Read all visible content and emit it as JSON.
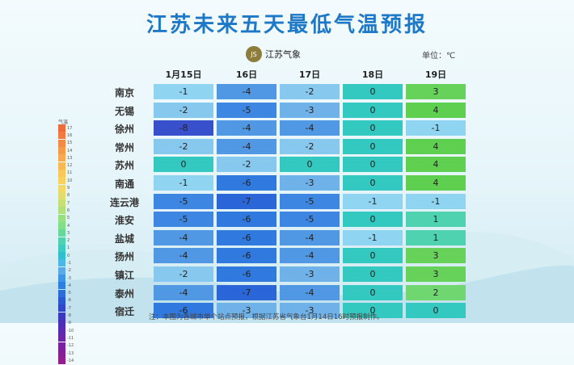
{
  "title": "江苏未来五天最低气温预报",
  "logo": {
    "text": "江苏气象",
    "mark": "JS"
  },
  "unit": "单位：℃",
  "legend": {
    "header": "气温",
    "labels": [
      "17",
      "16",
      "15",
      "14",
      "13",
      "12",
      "11",
      "10",
      "9",
      "8",
      "7",
      "6",
      "5",
      "4",
      "3",
      "2",
      "1",
      "0",
      "-1",
      "-2",
      "-3",
      "-4",
      "-5",
      "-6",
      "-7",
      "-8",
      "-9",
      "-10",
      "-11",
      "-12",
      "-13",
      "-14"
    ],
    "colors": [
      "#ee6a3a",
      "#f07a40",
      "#f38a44",
      "#f59a49",
      "#f7aa4e",
      "#f8b952",
      "#f9c756",
      "#f7d35c",
      "#efd866",
      "#e2dc6e",
      "#c8df74",
      "#b0e07a",
      "#97e080",
      "#7fe088",
      "#66d99a",
      "#4fd2ae",
      "#3ccbc0",
      "#2fc0d0",
      "#4ab8e4",
      "#5aaaea",
      "#3d95e6",
      "#2e80e0",
      "#2a6cda",
      "#2a58d2",
      "#3146c8",
      "#3c38c0",
      "#4a30b8",
      "#5a2ab0",
      "#6a26a8",
      "#7a22a0",
      "#862098",
      "#921e90"
    ]
  },
  "days": [
    "1月15日",
    "16日",
    "17日",
    "18日",
    "19日"
  ],
  "rows": [
    {
      "city": "南京",
      "temps": [
        "-1",
        "-4",
        "-2",
        "0",
        "3"
      ]
    },
    {
      "city": "无锡",
      "temps": [
        "-2",
        "-5",
        "-3",
        "0",
        "4"
      ]
    },
    {
      "city": "徐州",
      "temps": [
        "-8",
        "-4",
        "-4",
        "0",
        "-1"
      ]
    },
    {
      "city": "常州",
      "temps": [
        "-2",
        "-4",
        "-2",
        "0",
        "4"
      ]
    },
    {
      "city": "苏州",
      "temps": [
        "0",
        "-2",
        "0",
        "0",
        "4"
      ]
    },
    {
      "city": "南通",
      "temps": [
        "-1",
        "-6",
        "-3",
        "0",
        "4"
      ]
    },
    {
      "city": "连云港",
      "temps": [
        "-5",
        "-7",
        "-5",
        "-1",
        "-1"
      ]
    },
    {
      "city": "淮安",
      "temps": [
        "-5",
        "-6",
        "-5",
        "0",
        "1"
      ]
    },
    {
      "city": "盐城",
      "temps": [
        "-4",
        "-6",
        "-4",
        "-1",
        "1"
      ]
    },
    {
      "city": "扬州",
      "temps": [
        "-4",
        "-6",
        "-4",
        "0",
        "3"
      ]
    },
    {
      "city": "镇江",
      "temps": [
        "-2",
        "-6",
        "-3",
        "0",
        "3"
      ]
    },
    {
      "city": "泰州",
      "temps": [
        "-4",
        "-7",
        "-4",
        "0",
        "2"
      ]
    },
    {
      "city": "宿迁",
      "temps": [
        "-6",
        "-3",
        "-3",
        "0",
        "0"
      ]
    }
  ],
  "temp_colors": {
    "4": "#5fcf4f",
    "3": "#66d25a",
    "2": "#70d670",
    "1": "#4fd2b0",
    "0": "#33c8c0",
    "-1": "#8fd4f0",
    "-2": "#86c8ee",
    "-3": "#6fb2ea",
    "-4": "#5097e4",
    "-5": "#3d86e2",
    "-6": "#2f79df",
    "-7": "#2a66d8",
    "-8": "#3850cc"
  },
  "footnote": "注：本图为各城市单个站点预报，根据江苏省气象台1月14日16时预报制作。"
}
